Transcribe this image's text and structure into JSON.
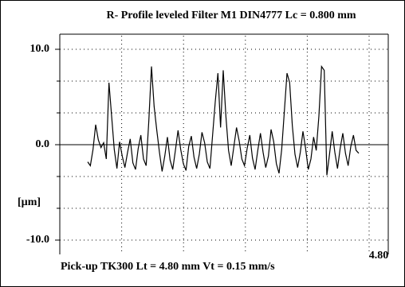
{
  "chart_data": {
    "type": "line",
    "title": "R-  Profile leveled   Filter  M1  DIN4777     Lc = 0.800  mm",
    "y_label": "[µm]",
    "footer": "Pick-up TK300    Lt = 4.80  mm    Vt = 0.15  mm/s",
    "x": [
      0.42,
      0.46,
      0.5,
      0.54,
      0.58,
      0.62,
      0.66,
      0.7,
      0.74,
      0.78,
      0.82,
      0.86,
      0.9,
      0.94,
      0.98,
      1.02,
      1.06,
      1.1,
      1.14,
      1.18,
      1.22,
      1.26,
      1.3,
      1.34,
      1.38,
      1.42,
      1.46,
      1.5,
      1.54,
      1.58,
      1.62,
      1.66,
      1.7,
      1.74,
      1.78,
      1.82,
      1.86,
      1.9,
      1.94,
      1.98,
      2.02,
      2.06,
      2.1,
      2.14,
      2.18,
      2.22,
      2.26,
      2.3,
      2.34,
      2.38,
      2.42,
      2.46,
      2.5,
      2.54,
      2.58,
      2.62,
      2.66,
      2.7,
      2.74,
      2.78,
      2.82,
      2.86,
      2.9,
      2.94,
      2.98,
      3.02,
      3.06,
      3.1,
      3.14,
      3.18,
      3.22,
      3.26,
      3.3,
      3.34,
      3.38,
      3.42,
      3.46,
      3.5,
      3.54,
      3.58,
      3.62,
      3.66,
      3.7,
      3.74,
      3.78,
      3.82,
      3.86,
      3.9,
      3.94,
      3.98,
      4.02,
      4.06,
      4.1,
      4.14,
      4.18,
      4.22,
      4.26,
      4.3,
      4.34,
      4.38,
      4.42,
      4.46,
      4.5
    ],
    "series": [
      {
        "color": "#000000",
        "values": [
          -1.8,
          -2.2,
          -0.5,
          2.1,
          0.5,
          -0.3,
          0.2,
          -1.5,
          6.5,
          3.0,
          -0.5,
          -2.5,
          0.3,
          -1.2,
          -2.4,
          -0.8,
          0.6,
          -1.9,
          -2.6,
          -0.4,
          1.0,
          -1.5,
          -2.2,
          2.5,
          8.2,
          4.0,
          1.5,
          -0.8,
          -2.8,
          -1.2,
          0.8,
          -1.6,
          -2.6,
          -0.6,
          1.5,
          -0.5,
          -2.0,
          -2.7,
          -0.2,
          0.9,
          -1.3,
          -2.5,
          -1.0,
          1.3,
          0.2,
          -1.8,
          -2.5,
          1.0,
          4.5,
          7.5,
          1.8,
          7.8,
          3.0,
          -0.6,
          -2.2,
          -0.2,
          1.8,
          0.4,
          -1.5,
          -2.2,
          -0.4,
          1.0,
          -1.4,
          -2.6,
          -0.6,
          1.2,
          -0.8,
          -2.4,
          -1.2,
          1.6,
          0.3,
          -2.0,
          -3.0,
          -0.5,
          3.5,
          7.5,
          6.5,
          2.0,
          -1.0,
          -2.4,
          -0.8,
          1.4,
          -0.4,
          -2.6,
          -1.5,
          0.8,
          -0.6,
          3.0,
          8.2,
          7.8,
          -3.2,
          -1.0,
          1.4,
          -0.8,
          -2.5,
          -0.4,
          1.2,
          -0.9,
          -2.2,
          -0.2,
          1.0,
          -0.6,
          -0.9
        ]
      }
    ],
    "xlim": [
      0,
      4.8
    ],
    "xticks": [
      {
        "value": 4.8,
        "label": "4.80"
      }
    ],
    "ylim": [
      -10,
      10
    ],
    "yticks": [
      {
        "value": 10,
        "label": "10.0"
      },
      {
        "value": 0,
        "label": "0.0"
      },
      {
        "value": -10,
        "label": "-10.0"
      }
    ],
    "grid": true
  }
}
